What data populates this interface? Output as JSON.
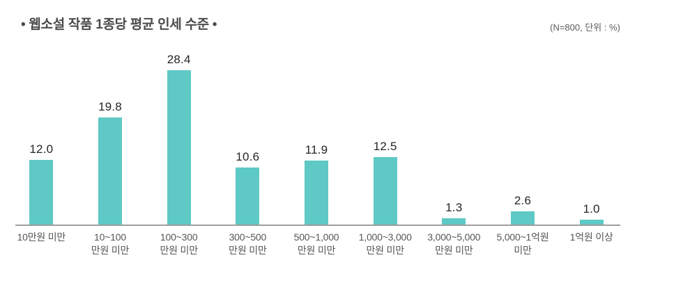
{
  "chart_data": {
    "type": "bar",
    "title": "• 웹소설 작품 1종당 평균 인세 수준 •",
    "note": "(N=800, 단위 : %)",
    "xlabel": "",
    "ylabel": "",
    "ylim": [
      0,
      30
    ],
    "grid": false,
    "legend": "none",
    "bar_color": "#5ec9c5",
    "axis_color": "#9e9e9e",
    "categories": [
      "10만원 미만",
      "10~100 만원 미만",
      "100~300 만원 미만",
      "300~500 만원 미만",
      "500~1,000 만원 미만",
      "1,000~3,000 만원 미만",
      "3,000~5,000 만원 미만",
      "5,000~1억원 미만",
      "1억원 이상"
    ],
    "categories_lines": [
      [
        "10만원 미만",
        ""
      ],
      [
        "10~100",
        "만원 미만"
      ],
      [
        "100~300",
        "만원 미만"
      ],
      [
        "300~500",
        "만원 미만"
      ],
      [
        "500~1,000",
        "만원 미만"
      ],
      [
        "1,000~3,000",
        "만원 미만"
      ],
      [
        "3,000~5,000",
        "만원 미만"
      ],
      [
        "5,000~1억원",
        "미만"
      ],
      [
        "1억원 이상",
        ""
      ]
    ],
    "values": [
      12.0,
      19.8,
      28.4,
      10.6,
      11.9,
      12.5,
      1.3,
      2.6,
      1.0
    ],
    "value_labels": [
      "12.0",
      "19.8",
      "28.4",
      "10.6",
      "11.9",
      "12.5",
      "1.3",
      "2.6",
      "1.0"
    ]
  }
}
